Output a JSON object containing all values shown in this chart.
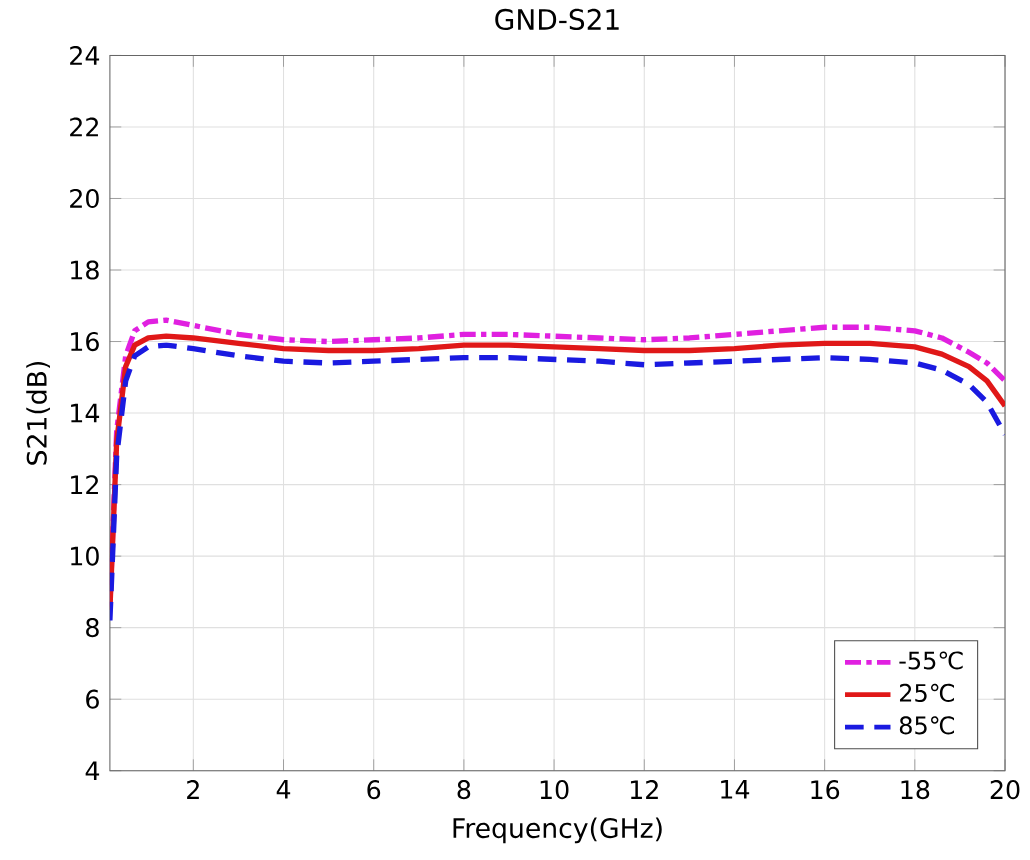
{
  "chart_data": {
    "type": "line",
    "title": "GND-S21",
    "xlabel": "Frequency(GHz)",
    "ylabel": "S21(dB)",
    "xlim": [
      0.15,
      20
    ],
    "ylim": [
      4,
      24
    ],
    "xticks": [
      2,
      4,
      6,
      8,
      10,
      12,
      14,
      16,
      18,
      20
    ],
    "yticks": [
      4,
      6,
      8,
      10,
      12,
      14,
      16,
      18,
      20,
      22,
      24
    ],
    "grid": true,
    "legend": "bottom right",
    "marker": "none",
    "series": [
      {
        "name": "-55℃",
        "color": "#e020e0",
        "line_style": "dashdot",
        "x": [
          0.15,
          0.3,
          0.5,
          0.7,
          1.0,
          1.4,
          2,
          3,
          4,
          5,
          6,
          7,
          8,
          9,
          10,
          11,
          12,
          13,
          14,
          15,
          16,
          17,
          18,
          18.6,
          19.2,
          19.6,
          20
        ],
        "values": [
          8.6,
          13.5,
          15.6,
          16.3,
          16.55,
          16.6,
          16.45,
          16.2,
          16.05,
          16.0,
          16.05,
          16.1,
          16.2,
          16.2,
          16.15,
          16.1,
          16.05,
          16.1,
          16.2,
          16.3,
          16.4,
          16.4,
          16.3,
          16.1,
          15.7,
          15.4,
          14.9
        ]
      },
      {
        "name": "25℃",
        "color": "#e01818",
        "line_style": "solid",
        "x": [
          0.15,
          0.3,
          0.5,
          0.7,
          1.0,
          1.4,
          2,
          3,
          4,
          5,
          6,
          7,
          8,
          9,
          10,
          11,
          12,
          13,
          14,
          15,
          16,
          17,
          18,
          18.6,
          19.2,
          19.6,
          20
        ],
        "values": [
          8.5,
          13.2,
          15.3,
          15.9,
          16.1,
          16.15,
          16.1,
          15.95,
          15.8,
          15.75,
          15.75,
          15.8,
          15.9,
          15.9,
          15.85,
          15.8,
          15.75,
          15.75,
          15.8,
          15.9,
          15.95,
          15.95,
          15.85,
          15.65,
          15.3,
          14.9,
          14.2
        ]
      },
      {
        "name": "85℃",
        "color": "#1a1ae0",
        "line_style": "dashed",
        "x": [
          0.15,
          0.3,
          0.5,
          0.7,
          1.0,
          1.4,
          2,
          3,
          4,
          5,
          6,
          7,
          8,
          9,
          10,
          11,
          12,
          13,
          14,
          15,
          16,
          17,
          18,
          18.6,
          19.2,
          19.6,
          20
        ],
        "values": [
          8.2,
          12.8,
          14.9,
          15.6,
          15.85,
          15.9,
          15.8,
          15.6,
          15.45,
          15.4,
          15.45,
          15.5,
          15.55,
          15.55,
          15.5,
          15.45,
          15.35,
          15.4,
          15.45,
          15.5,
          15.55,
          15.5,
          15.4,
          15.2,
          14.8,
          14.3,
          13.4
        ]
      }
    ]
  }
}
